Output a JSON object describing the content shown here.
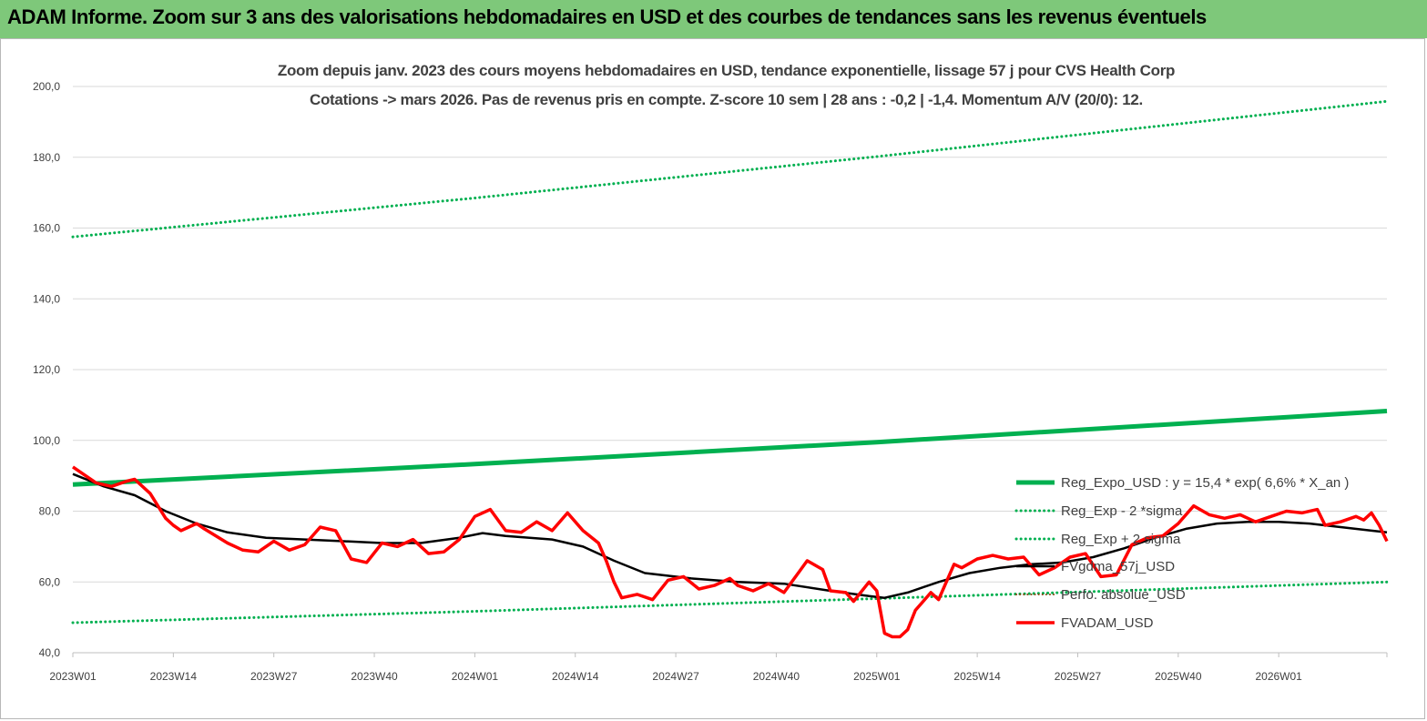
{
  "header": {
    "title": "ADAM Informe. Zoom sur 3 ans des valorisations hebdomadaires en USD et des courbes de tendances sans les revenus éventuels"
  },
  "colors": {
    "banner": "#7ec87a",
    "trend": "#00b050",
    "price": "#ff0000",
    "smooth": "#000000",
    "perf": "#8b4513"
  },
  "chart_data": {
    "type": "line",
    "title": "Zoom depuis janv. 2023 des cours moyens hebdomadaires en USD, tendance exponentielle, lissage 57 j pour CVS Health Corp",
    "subtitle": "Cotations -> mars 2026. Pas de revenus pris en compte. Z-score 10 sem | 28 ans : -0,2 | -1,4. Momentum A/V (20/0): 12.",
    "xlabel": "",
    "ylabel": "",
    "ylim": [
      40,
      200
    ],
    "y_ticks": [
      "40,0",
      "60,0",
      "80,0",
      "100,0",
      "120,0",
      "140,0",
      "160,0",
      "180,0",
      "200,0"
    ],
    "x_ticks": [
      "2023W01",
      "2023W14",
      "2023W27",
      "2023W40",
      "2024W01",
      "2024W14",
      "2024W27",
      "2024W40",
      "2025W01",
      "2025W14",
      "2025W27",
      "2025W40",
      "2026W01"
    ],
    "x_tick_weeks": [
      0,
      13,
      26,
      39,
      52,
      65,
      78,
      91,
      104,
      117,
      130,
      143,
      156
    ],
    "n_weeks": 171,
    "grid": true,
    "legend_position": "right",
    "legend": [
      "Reg_Expo_USD : y = 15,4 * exp( 6,6% *  X_an )",
      "Reg_Exp - 2 *sigma",
      "Reg_Exp + 2 sigma",
      "FVgdma_57j_USD",
      "Perfo. absolue_USD",
      "FVADAM_USD"
    ],
    "series": [
      {
        "name": "Reg_Expo_USD : y = 15,4 * exp( 6,6% *  X_an )",
        "style": "thick",
        "color": "#00b050",
        "points": [
          [
            0,
            87.5
          ],
          [
            52,
            93.3
          ],
          [
            104,
            99.5
          ],
          [
            170,
            108.3
          ]
        ]
      },
      {
        "name": "Reg_Exp - 2 *sigma",
        "style": "dotted",
        "color": "#00b050",
        "points": [
          [
            0,
            48.5
          ],
          [
            52,
            51.7
          ],
          [
            104,
            55.3
          ],
          [
            170,
            60.0
          ]
        ]
      },
      {
        "name": "Reg_Exp + 2 sigma",
        "style": "dotted",
        "color": "#00b050",
        "points": [
          [
            0,
            157.5
          ],
          [
            52,
            168.5
          ],
          [
            104,
            180.2
          ],
          [
            170,
            195.8
          ]
        ]
      },
      {
        "name": "FVgdma_57j_USD",
        "style": "solid",
        "color": "#000000",
        "points": [
          [
            0,
            90.5
          ],
          [
            4,
            87.0
          ],
          [
            8,
            84.5
          ],
          [
            12,
            80.0
          ],
          [
            16,
            76.5
          ],
          [
            20,
            74.0
          ],
          [
            25,
            72.5
          ],
          [
            30,
            72.0
          ],
          [
            35,
            71.5
          ],
          [
            40,
            71.0
          ],
          [
            45,
            71.0
          ],
          [
            50,
            72.5
          ],
          [
            53,
            73.8
          ],
          [
            56,
            73.0
          ],
          [
            62,
            72.0
          ],
          [
            66,
            70.0
          ],
          [
            70,
            66.0
          ],
          [
            74,
            62.5
          ],
          [
            80,
            61.0
          ],
          [
            86,
            60.0
          ],
          [
            92,
            59.5
          ],
          [
            98,
            57.5
          ],
          [
            103,
            56.0
          ],
          [
            105,
            55.5
          ],
          [
            108,
            57.0
          ],
          [
            112,
            60.0
          ],
          [
            116,
            62.5
          ],
          [
            120,
            64.0
          ],
          [
            124,
            65.0
          ],
          [
            128,
            65.5
          ],
          [
            132,
            67.0
          ],
          [
            136,
            69.5
          ],
          [
            140,
            72.5
          ],
          [
            144,
            75.0
          ],
          [
            148,
            76.5
          ],
          [
            152,
            77.0
          ],
          [
            156,
            77.0
          ],
          [
            160,
            76.5
          ],
          [
            164,
            75.5
          ],
          [
            168,
            74.5
          ],
          [
            170,
            74.0
          ]
        ]
      },
      {
        "name": "FVADAM_USD",
        "style": "thick",
        "color": "#ff0000",
        "points": [
          [
            0,
            92.5
          ],
          [
            3,
            88.0
          ],
          [
            5,
            87.0
          ],
          [
            7,
            88.5
          ],
          [
            8,
            89.0
          ],
          [
            10,
            85.0
          ],
          [
            12,
            78.0
          ],
          [
            13,
            76.0
          ],
          [
            14,
            74.5
          ],
          [
            16,
            76.5
          ],
          [
            17,
            75.0
          ],
          [
            20,
            71.0
          ],
          [
            22,
            69.0
          ],
          [
            24,
            68.5
          ],
          [
            26,
            71.5
          ],
          [
            28,
            69.0
          ],
          [
            30,
            70.5
          ],
          [
            32,
            75.5
          ],
          [
            34,
            74.5
          ],
          [
            36,
            66.5
          ],
          [
            38,
            65.5
          ],
          [
            40,
            71.0
          ],
          [
            42,
            70.0
          ],
          [
            44,
            72.0
          ],
          [
            46,
            68.0
          ],
          [
            48,
            68.5
          ],
          [
            50,
            72.0
          ],
          [
            52,
            78.5
          ],
          [
            54,
            80.5
          ],
          [
            56,
            74.5
          ],
          [
            58,
            74.0
          ],
          [
            60,
            77.0
          ],
          [
            62,
            74.5
          ],
          [
            64,
            79.5
          ],
          [
            66,
            74.5
          ],
          [
            68,
            71.0
          ],
          [
            69,
            66.0
          ],
          [
            70,
            60.0
          ],
          [
            71,
            55.5
          ],
          [
            73,
            56.5
          ],
          [
            75,
            55.0
          ],
          [
            77,
            60.5
          ],
          [
            79,
            61.5
          ],
          [
            81,
            58.0
          ],
          [
            83,
            59.0
          ],
          [
            85,
            61.0
          ],
          [
            86,
            59.0
          ],
          [
            88,
            57.5
          ],
          [
            90,
            59.5
          ],
          [
            92,
            57.0
          ],
          [
            94,
            63.0
          ],
          [
            95,
            66.0
          ],
          [
            97,
            63.5
          ],
          [
            98,
            57.5
          ],
          [
            100,
            57.0
          ],
          [
            101,
            54.5
          ],
          [
            103,
            60.0
          ],
          [
            104,
            57.5
          ],
          [
            105,
            45.5
          ],
          [
            106,
            44.5
          ],
          [
            107,
            44.5
          ],
          [
            108,
            46.5
          ],
          [
            109,
            52.0
          ],
          [
            111,
            57.0
          ],
          [
            112,
            55.0
          ],
          [
            114,
            65.0
          ],
          [
            115,
            64.0
          ],
          [
            117,
            66.5
          ],
          [
            119,
            67.5
          ],
          [
            121,
            66.5
          ],
          [
            123,
            67.0
          ],
          [
            125,
            62.0
          ],
          [
            127,
            64.0
          ],
          [
            129,
            67.0
          ],
          [
            131,
            68.0
          ],
          [
            133,
            61.5
          ],
          [
            135,
            62.0
          ],
          [
            137,
            70.5
          ],
          [
            139,
            72.5
          ],
          [
            141,
            73.0
          ],
          [
            143,
            76.5
          ],
          [
            145,
            81.5
          ],
          [
            147,
            79.0
          ],
          [
            149,
            78.0
          ],
          [
            151,
            79.0
          ],
          [
            153,
            77.0
          ],
          [
            155,
            78.5
          ],
          [
            157,
            80.0
          ],
          [
            159,
            79.5
          ],
          [
            161,
            80.5
          ],
          [
            162,
            76.0
          ],
          [
            164,
            77.0
          ],
          [
            166,
            78.5
          ],
          [
            167,
            77.5
          ],
          [
            168,
            79.5
          ],
          [
            169,
            76.0
          ],
          [
            170,
            71.5
          ]
        ]
      }
    ]
  }
}
